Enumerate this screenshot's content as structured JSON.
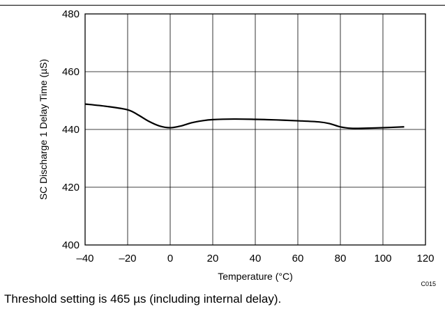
{
  "chart_data": {
    "type": "line",
    "xlabel": "Temperature (°C)",
    "ylabel": "SC Discharge 1 Delay Time (µS)",
    "xlim": [
      -40,
      120
    ],
    "ylim": [
      400,
      480
    ],
    "x_ticks": [
      -40,
      -20,
      0,
      20,
      40,
      60,
      80,
      100,
      120
    ],
    "x_tick_labels": [
      "–40",
      "–20",
      "0",
      "20",
      "40",
      "60",
      "80",
      "100",
      "120"
    ],
    "y_ticks": [
      400,
      420,
      440,
      460,
      480
    ],
    "y_tick_labels": [
      "400",
      "420",
      "440",
      "460",
      "480"
    ],
    "grid": true,
    "legend": "none",
    "line_color": "#000000",
    "series": [
      {
        "x": [
          -40,
          -30,
          -20,
          -15,
          -10,
          -5,
          0,
          5,
          10,
          15,
          20,
          30,
          40,
          50,
          60,
          70,
          75,
          80,
          85,
          90,
          100,
          110
        ],
        "values": [
          448.8,
          448.0,
          446.8,
          445.0,
          442.8,
          441.2,
          440.6,
          441.2,
          442.3,
          443.0,
          443.4,
          443.6,
          443.5,
          443.3,
          443.0,
          442.6,
          442.0,
          440.9,
          440.4,
          440.4,
          440.6,
          440.9
        ]
      }
    ],
    "code": "C015"
  },
  "caption": "Threshold setting is 465 µs (including internal delay)."
}
